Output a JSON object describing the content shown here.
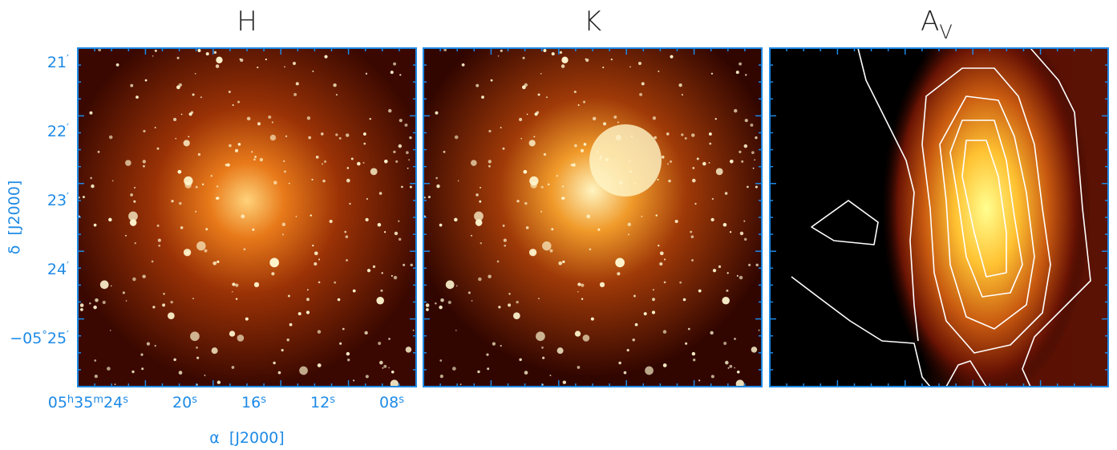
{
  "panels": [
    {
      "title": "H"
    },
    {
      "title": "K"
    },
    {
      "title": "A",
      "subscript": "V"
    }
  ],
  "x_axis": {
    "label": "α  [J2000]",
    "ticks": [
      "05h35m24s",
      "20s",
      "16s",
      "12s",
      "08s"
    ]
  },
  "y_axis": {
    "label": "δ  [J2000]",
    "ticks": [
      "21′",
      "22′",
      "23′",
      "24′",
      "−05°25′"
    ]
  }
}
